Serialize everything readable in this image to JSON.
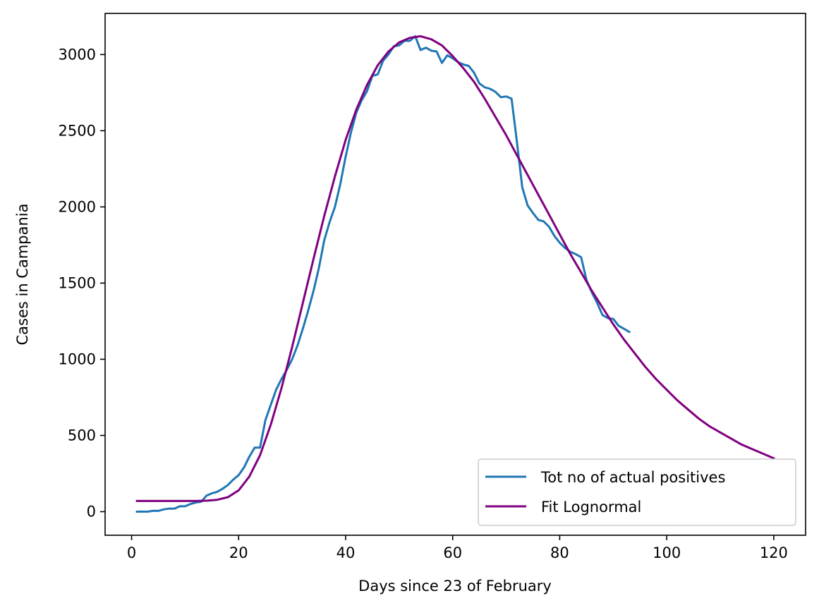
{
  "chart_data": {
    "type": "line",
    "title": "",
    "xlabel": "Days since 23 of February",
    "ylabel": "Cases in Campania",
    "xlim": [
      -4.95,
      125.95
    ],
    "ylim": [
      -155,
      3270
    ],
    "xticks": [
      0,
      20,
      40,
      60,
      80,
      100,
      120
    ],
    "yticks": [
      0,
      500,
      1000,
      1500,
      2000,
      2500,
      3000
    ],
    "grid": false,
    "legend_position": "lower right",
    "series": [
      {
        "name": "Tot no of actual positives",
        "color": "#1f77b4",
        "x": [
          1,
          2,
          3,
          4,
          5,
          6,
          7,
          8,
          9,
          10,
          11,
          12,
          13,
          14,
          15,
          16,
          17,
          18,
          19,
          20,
          21,
          22,
          23,
          24,
          25,
          26,
          27,
          28,
          29,
          30,
          31,
          32,
          33,
          34,
          35,
          36,
          37,
          38,
          39,
          40,
          41,
          42,
          43,
          44,
          45,
          46,
          47,
          48,
          49,
          50,
          51,
          52,
          53,
          54,
          55,
          56,
          57,
          58,
          59,
          60,
          61,
          62,
          63,
          64,
          65,
          66,
          67,
          68,
          69,
          70,
          71,
          72,
          73,
          74,
          75,
          76,
          77,
          78,
          79,
          80,
          81,
          82,
          83,
          84,
          85,
          86,
          87,
          88,
          89,
          90,
          91,
          92,
          93
        ],
        "values": [
          0,
          0,
          0,
          5,
          5,
          15,
          20,
          20,
          35,
          35,
          50,
          60,
          65,
          105,
          120,
          130,
          150,
          175,
          210,
          240,
          290,
          360,
          420,
          420,
          600,
          700,
          800,
          870,
          930,
          1000,
          1090,
          1200,
          1320,
          1450,
          1600,
          1780,
          1900,
          2000,
          2150,
          2330,
          2490,
          2620,
          2700,
          2760,
          2860,
          2870,
          2960,
          3000,
          3055,
          3060,
          3090,
          3090,
          3120,
          3030,
          3045,
          3025,
          3020,
          2945,
          2995,
          2975,
          2950,
          2935,
          2925,
          2880,
          2810,
          2785,
          2775,
          2755,
          2720,
          2725,
          2710,
          2430,
          2130,
          2010,
          1960,
          1915,
          1905,
          1870,
          1810,
          1765,
          1730,
          1705,
          1690,
          1670,
          1520,
          1440,
          1370,
          1290,
          1270,
          1265,
          1220,
          1200,
          1180
        ]
      },
      {
        "name": "Fit Lognormal",
        "color": "#800080",
        "x": [
          1,
          2,
          4,
          6,
          8,
          10,
          12,
          14,
          16,
          18,
          20,
          22,
          24,
          26,
          28,
          30,
          32,
          34,
          36,
          38,
          40,
          42,
          44,
          46,
          48,
          50,
          52,
          54,
          56,
          58,
          60,
          62,
          64,
          66,
          68,
          70,
          72,
          74,
          76,
          78,
          80,
          82,
          84,
          86,
          88,
          90,
          92,
          94,
          96,
          98,
          100,
          102,
          104,
          106,
          108,
          110,
          112,
          114,
          116,
          118,
          120
        ],
        "values": [
          70,
          70,
          70,
          70,
          70,
          70,
          70,
          72,
          78,
          95,
          140,
          230,
          370,
          570,
          810,
          1080,
          1370,
          1660,
          1940,
          2200,
          2440,
          2640,
          2800,
          2930,
          3020,
          3080,
          3110,
          3120,
          3100,
          3060,
          2990,
          2910,
          2820,
          2710,
          2590,
          2470,
          2340,
          2210,
          2080,
          1950,
          1820,
          1690,
          1570,
          1450,
          1340,
          1230,
          1130,
          1040,
          950,
          870,
          800,
          730,
          670,
          610,
          560,
          520,
          480,
          440,
          410,
          380,
          350
        ]
      }
    ]
  }
}
